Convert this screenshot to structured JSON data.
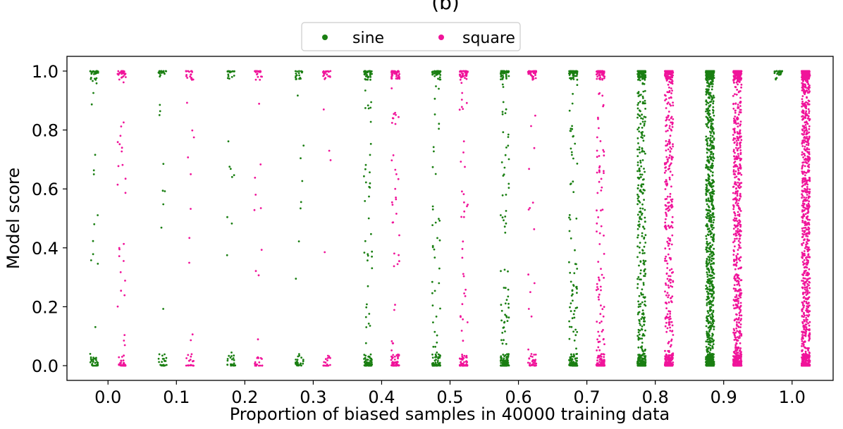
{
  "chart_data": {
    "type": "scatter",
    "title": "(b)",
    "xlabel": "Proportion of biased samples in 40000 training data",
    "ylabel": "Model score",
    "xlim": [
      -0.06,
      1.06
    ],
    "ylim": [
      -0.05,
      1.05
    ],
    "xticks": [
      0.0,
      0.1,
      0.2,
      0.3,
      0.4,
      0.5,
      0.6,
      0.7,
      0.8,
      0.9,
      1.0
    ],
    "xtick_labels": [
      "0.0",
      "0.1",
      "0.2",
      "0.3",
      "0.4",
      "0.5",
      "0.6",
      "0.7",
      "0.8",
      "0.9",
      "1.0"
    ],
    "yticks": [
      0.0,
      0.2,
      0.4,
      0.6,
      0.8,
      1.0
    ],
    "ytick_labels": [
      "0.0",
      "0.2",
      "0.4",
      "0.6",
      "0.8",
      "1.0"
    ],
    "grid": false,
    "legend_position": "top-center, outside plot",
    "jitter_width": 0.006,
    "group_offset": 0.02,
    "series": [
      {
        "name": "sine",
        "color": "#1a7f12",
        "offset": -0.02,
        "groups": [
          {
            "x": 0.0,
            "n_top": 30,
            "n_bottom": 30,
            "n_mid": 14
          },
          {
            "x": 0.1,
            "n_top": 20,
            "n_bottom": 24,
            "n_mid": 9
          },
          {
            "x": 0.2,
            "n_top": 20,
            "n_bottom": 24,
            "n_mid": 9
          },
          {
            "x": 0.3,
            "n_top": 18,
            "n_bottom": 24,
            "n_mid": 8
          },
          {
            "x": 0.4,
            "n_top": 40,
            "n_bottom": 60,
            "n_mid": 40
          },
          {
            "x": 0.5,
            "n_top": 40,
            "n_bottom": 60,
            "n_mid": 38
          },
          {
            "x": 0.6,
            "n_top": 50,
            "n_bottom": 90,
            "n_mid": 60
          },
          {
            "x": 0.7,
            "n_top": 60,
            "n_bottom": 90,
            "n_mid": 70
          },
          {
            "x": 0.8,
            "n_top": 120,
            "n_bottom": 150,
            "n_mid": 260
          },
          {
            "x": 0.9,
            "n_top": 200,
            "n_bottom": 250,
            "n_mid": 650
          },
          {
            "x": 1.0,
            "n_top": 25,
            "n_bottom": 0,
            "n_mid": 0
          }
        ]
      },
      {
        "name": "square",
        "color": "#f0149a",
        "offset": 0.02,
        "groups": [
          {
            "x": 0.0,
            "n_top": 30,
            "n_bottom": 30,
            "n_mid": 26
          },
          {
            "x": 0.1,
            "n_top": 20,
            "n_bottom": 20,
            "n_mid": 10
          },
          {
            "x": 0.2,
            "n_top": 20,
            "n_bottom": 22,
            "n_mid": 10
          },
          {
            "x": 0.3,
            "n_top": 20,
            "n_bottom": 20,
            "n_mid": 4
          },
          {
            "x": 0.4,
            "n_top": 40,
            "n_bottom": 50,
            "n_mid": 36
          },
          {
            "x": 0.5,
            "n_top": 40,
            "n_bottom": 50,
            "n_mid": 36
          },
          {
            "x": 0.6,
            "n_top": 40,
            "n_bottom": 30,
            "n_mid": 16
          },
          {
            "x": 0.7,
            "n_top": 60,
            "n_bottom": 70,
            "n_mid": 80
          },
          {
            "x": 0.8,
            "n_top": 120,
            "n_bottom": 130,
            "n_mid": 260
          },
          {
            "x": 0.9,
            "n_top": 160,
            "n_bottom": 170,
            "n_mid": 480
          },
          {
            "x": 1.0,
            "n_top": 180,
            "n_bottom": 180,
            "n_mid": 650
          }
        ]
      }
    ]
  }
}
